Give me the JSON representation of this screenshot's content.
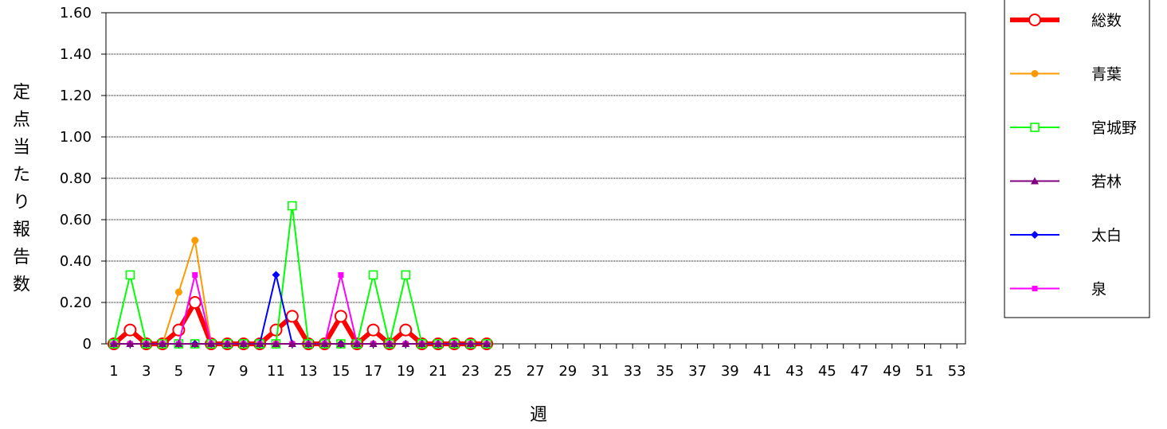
{
  "chart_data": {
    "type": "line",
    "xlabel": "週",
    "ylabel": "定点当たり報告数",
    "ylim": [
      0,
      1.6
    ],
    "y_ticks": [
      "0",
      "0.20",
      "0.40",
      "0.60",
      "0.80",
      "1.00",
      "1.20",
      "1.40",
      "1.60"
    ],
    "y_tick_values": [
      0,
      0.2,
      0.4,
      0.6,
      0.8,
      1.0,
      1.2,
      1.4,
      1.6
    ],
    "x_range": [
      1,
      53
    ],
    "x_tick_labels": [
      "1",
      "3",
      "5",
      "7",
      "9",
      "11",
      "13",
      "15",
      "17",
      "19",
      "21",
      "23",
      "25",
      "27",
      "29",
      "31",
      "33",
      "35",
      "37",
      "39",
      "41",
      "43",
      "45",
      "47",
      "49",
      "51",
      "53"
    ],
    "x": [
      1,
      2,
      3,
      4,
      5,
      6,
      7,
      8,
      9,
      10,
      11,
      12,
      13,
      14,
      15,
      16,
      17,
      18,
      19,
      20,
      21,
      22,
      23,
      24
    ],
    "grid": "horizontal dotted",
    "legend_position": "right",
    "series": [
      {
        "name": "総数",
        "color": "#ff0000",
        "marker": "circle-open",
        "values": [
          0,
          0.067,
          0,
          0,
          0.067,
          0.2,
          0,
          0,
          0,
          0,
          0.067,
          0.133,
          0,
          0,
          0.133,
          0,
          0.067,
          0,
          0.067,
          0,
          0,
          0,
          0,
          0
        ]
      },
      {
        "name": "青葉",
        "color": "#ff9900",
        "marker": "circle",
        "values": [
          0,
          0,
          0,
          0,
          0.25,
          0.5,
          0,
          0,
          0,
          0,
          0,
          0,
          0,
          0,
          0,
          0,
          0,
          0,
          0,
          0,
          0,
          0,
          0,
          0
        ]
      },
      {
        "name": "宮城野",
        "color": "#00ff00",
        "marker": "square-open",
        "values": [
          0,
          0.333,
          0,
          0,
          0,
          0,
          0,
          0,
          0,
          0,
          0,
          0.667,
          0,
          0,
          0,
          0,
          0.333,
          0,
          0.333,
          0,
          0,
          0,
          0,
          0
        ]
      },
      {
        "name": "若林",
        "color": "#800080",
        "marker": "triangle",
        "values": [
          0,
          0,
          0,
          0,
          0,
          0,
          0,
          0,
          0,
          0,
          0,
          0,
          0,
          0,
          0,
          0,
          0,
          0,
          0,
          0,
          0,
          0,
          0,
          0
        ]
      },
      {
        "name": "太白",
        "color": "#0000ff",
        "marker": "diamond",
        "values": [
          0,
          0,
          0,
          0,
          0,
          0,
          0,
          0,
          0,
          0,
          0.333,
          0,
          0,
          0,
          0,
          0,
          0,
          0,
          0,
          0,
          0,
          0,
          0,
          0
        ]
      },
      {
        "name": "泉",
        "color": "#ff00ff",
        "marker": "square",
        "values": [
          0,
          0,
          0,
          0,
          0,
          0.333,
          0,
          0,
          0,
          0,
          0,
          0,
          0,
          0,
          0.333,
          0,
          0,
          0,
          0,
          0,
          0,
          0,
          0,
          0
        ]
      }
    ]
  }
}
